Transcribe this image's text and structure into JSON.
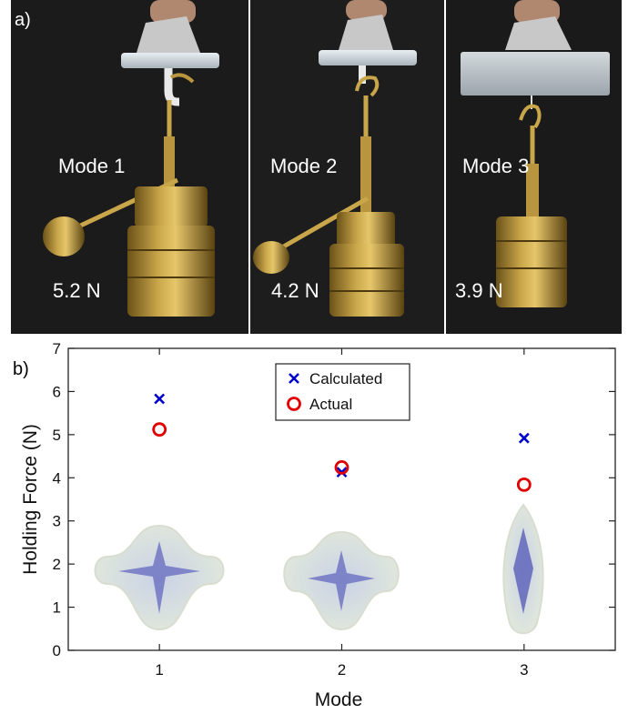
{
  "panel_a": {
    "label": "a)",
    "photos": [
      {
        "mode_label": "Mode 1",
        "force_label": "5.2 N"
      },
      {
        "mode_label": "Mode 2",
        "force_label": "4.2 N"
      },
      {
        "mode_label": "Mode 3",
        "force_label": "3.9 N"
      }
    ]
  },
  "chart_data": {
    "type": "scatter",
    "panel_label": "b)",
    "xlabel": "Mode",
    "ylabel": "Holding Force (N)",
    "xlim": [
      0.5,
      3.5
    ],
    "ylim": [
      0,
      7
    ],
    "xticks": [
      1,
      2,
      3
    ],
    "yticks": [
      0,
      1,
      2,
      3,
      4,
      5,
      6,
      7
    ],
    "legend_position": "top-center",
    "grid": false,
    "series": [
      {
        "name": "Calculated",
        "marker": "x",
        "color": "#0000cc",
        "x": [
          1,
          2,
          3
        ],
        "y": [
          5.83,
          4.13,
          4.92
        ]
      },
      {
        "name": "Actual",
        "marker": "o",
        "color": "#e00000",
        "x": [
          1,
          2,
          3
        ],
        "y": [
          5.12,
          4.24,
          3.84
        ]
      }
    ]
  }
}
